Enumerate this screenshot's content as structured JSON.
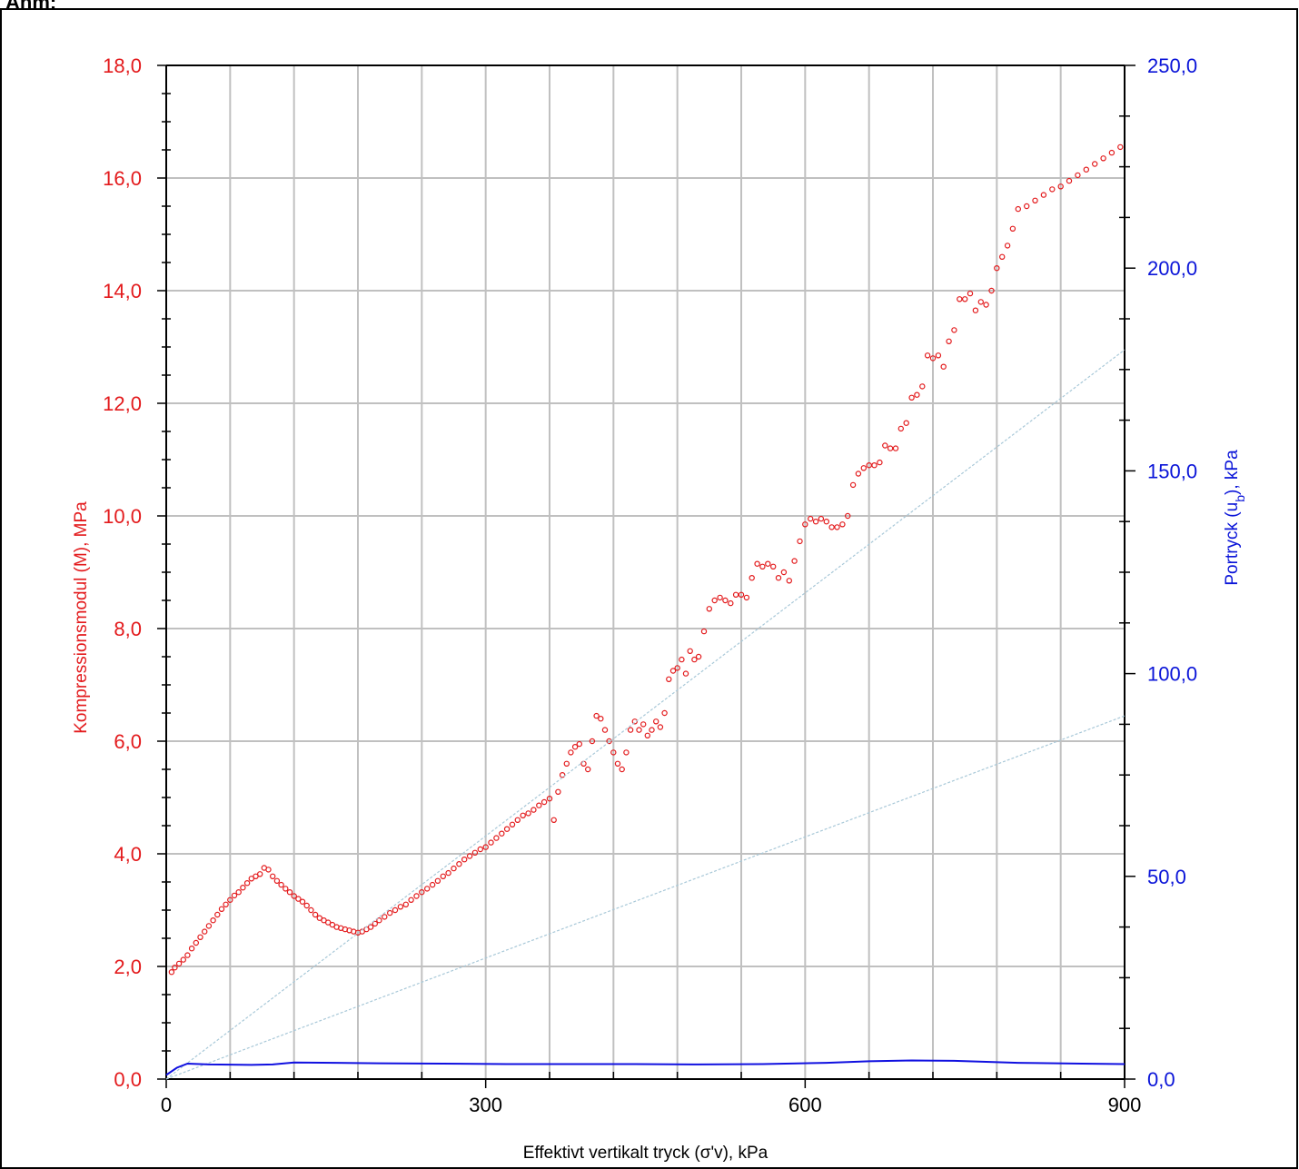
{
  "header": {
    "corner_label": "Anm:"
  },
  "colors": {
    "left_axis": "#e31a1c",
    "right_axis": "#0a14d8",
    "grid": "#c0c0c0",
    "ref_line": "#a8c8d8",
    "pore_line": "#1010e0"
  },
  "chart_data": {
    "type": "scatter",
    "xlabel": "Effektivt vertikalt tryck (σ'v), kPa",
    "ylabel_left": "Kompressionsmodul (M), MPa",
    "ylabel_right": "Portryck (uₕ), kPa",
    "ylabel_right_base": "Portryck (u",
    "ylabel_right_sub": "b",
    "ylabel_right_tail": "), kPa",
    "xlim": [
      0,
      900
    ],
    "ylim_left": [
      0,
      18
    ],
    "ylim_right": [
      0,
      250
    ],
    "x_ticks": [
      "0",
      "300",
      "600",
      "900"
    ],
    "y_left_ticks": [
      "0,0",
      "2,0",
      "4,0",
      "6,0",
      "8,0",
      "10,0",
      "12,0",
      "14,0",
      "16,0",
      "18,0"
    ],
    "y_right_ticks": [
      "0,0",
      "50,0",
      "100,0",
      "150,0",
      "200,0",
      "250,0"
    ],
    "grid": true,
    "series": [
      {
        "kind": "scatter-circles",
        "axis": "left",
        "points": [
          [
            5,
            1.9
          ],
          [
            8,
            1.98
          ],
          [
            12,
            2.05
          ],
          [
            16,
            2.12
          ],
          [
            20,
            2.2
          ],
          [
            24,
            2.32
          ],
          [
            28,
            2.42
          ],
          [
            32,
            2.52
          ],
          [
            36,
            2.62
          ],
          [
            40,
            2.72
          ],
          [
            44,
            2.82
          ],
          [
            48,
            2.92
          ],
          [
            52,
            3.02
          ],
          [
            56,
            3.1
          ],
          [
            60,
            3.18
          ],
          [
            64,
            3.26
          ],
          [
            68,
            3.32
          ],
          [
            72,
            3.4
          ],
          [
            76,
            3.48
          ],
          [
            80,
            3.56
          ],
          [
            84,
            3.6
          ],
          [
            88,
            3.64
          ],
          [
            92,
            3.75
          ],
          [
            96,
            3.72
          ],
          [
            100,
            3.6
          ],
          [
            104,
            3.52
          ],
          [
            108,
            3.45
          ],
          [
            112,
            3.38
          ],
          [
            116,
            3.32
          ],
          [
            120,
            3.25
          ],
          [
            124,
            3.2
          ],
          [
            128,
            3.15
          ],
          [
            132,
            3.08
          ],
          [
            136,
            3.0
          ],
          [
            140,
            2.92
          ],
          [
            144,
            2.86
          ],
          [
            148,
            2.82
          ],
          [
            152,
            2.78
          ],
          [
            156,
            2.74
          ],
          [
            160,
            2.7
          ],
          [
            164,
            2.68
          ],
          [
            168,
            2.66
          ],
          [
            172,
            2.64
          ],
          [
            176,
            2.62
          ],
          [
            180,
            2.6
          ],
          [
            184,
            2.62
          ],
          [
            188,
            2.66
          ],
          [
            192,
            2.7
          ],
          [
            196,
            2.76
          ],
          [
            200,
            2.82
          ],
          [
            205,
            2.88
          ],
          [
            210,
            2.95
          ],
          [
            215,
            3.0
          ],
          [
            220,
            3.06
          ],
          [
            225,
            3.1
          ],
          [
            230,
            3.18
          ],
          [
            235,
            3.25
          ],
          [
            240,
            3.32
          ],
          [
            245,
            3.38
          ],
          [
            250,
            3.45
          ],
          [
            255,
            3.52
          ],
          [
            260,
            3.6
          ],
          [
            265,
            3.66
          ],
          [
            270,
            3.74
          ],
          [
            275,
            3.82
          ],
          [
            280,
            3.9
          ],
          [
            285,
            3.96
          ],
          [
            290,
            4.02
          ],
          [
            295,
            4.08
          ],
          [
            300,
            4.12
          ],
          [
            305,
            4.2
          ],
          [
            310,
            4.28
          ],
          [
            315,
            4.36
          ],
          [
            320,
            4.44
          ],
          [
            325,
            4.52
          ],
          [
            330,
            4.6
          ],
          [
            335,
            4.68
          ],
          [
            340,
            4.72
          ],
          [
            345,
            4.78
          ],
          [
            350,
            4.86
          ],
          [
            355,
            4.92
          ],
          [
            360,
            4.98
          ],
          [
            364,
            4.6
          ],
          [
            368,
            5.1
          ],
          [
            372,
            5.4
          ],
          [
            376,
            5.6
          ],
          [
            380,
            5.8
          ],
          [
            384,
            5.9
          ],
          [
            388,
            5.95
          ],
          [
            392,
            5.6
          ],
          [
            396,
            5.5
          ],
          [
            400,
            6.0
          ],
          [
            404,
            6.45
          ],
          [
            408,
            6.4
          ],
          [
            412,
            6.2
          ],
          [
            416,
            6.0
          ],
          [
            420,
            5.8
          ],
          [
            424,
            5.6
          ],
          [
            428,
            5.5
          ],
          [
            432,
            5.8
          ],
          [
            436,
            6.2
          ],
          [
            440,
            6.35
          ],
          [
            444,
            6.2
          ],
          [
            448,
            6.3
          ],
          [
            452,
            6.1
          ],
          [
            456,
            6.2
          ],
          [
            460,
            6.35
          ],
          [
            464,
            6.25
          ],
          [
            468,
            6.5
          ],
          [
            472,
            7.1
          ],
          [
            476,
            7.25
          ],
          [
            480,
            7.3
          ],
          [
            484,
            7.45
          ],
          [
            488,
            7.2
          ],
          [
            492,
            7.6
          ],
          [
            496,
            7.45
          ],
          [
            500,
            7.5
          ],
          [
            505,
            7.95
          ],
          [
            510,
            8.35
          ],
          [
            515,
            8.5
          ],
          [
            520,
            8.55
          ],
          [
            525,
            8.5
          ],
          [
            530,
            8.45
          ],
          [
            535,
            8.6
          ],
          [
            540,
            8.6
          ],
          [
            545,
            8.55
          ],
          [
            550,
            8.9
          ],
          [
            555,
            9.15
          ],
          [
            560,
            9.1
          ],
          [
            565,
            9.15
          ],
          [
            570,
            9.1
          ],
          [
            575,
            8.9
          ],
          [
            580,
            9.0
          ],
          [
            585,
            8.85
          ],
          [
            590,
            9.2
          ],
          [
            595,
            9.55
          ],
          [
            600,
            9.85
          ],
          [
            605,
            9.95
          ],
          [
            610,
            9.9
          ],
          [
            615,
            9.95
          ],
          [
            620,
            9.9
          ],
          [
            625,
            9.8
          ],
          [
            630,
            9.8
          ],
          [
            635,
            9.85
          ],
          [
            640,
            10.0
          ],
          [
            645,
            10.55
          ],
          [
            650,
            10.75
          ],
          [
            655,
            10.85
          ],
          [
            660,
            10.9
          ],
          [
            665,
            10.9
          ],
          [
            670,
            10.95
          ],
          [
            675,
            11.25
          ],
          [
            680,
            11.2
          ],
          [
            685,
            11.2
          ],
          [
            690,
            11.55
          ],
          [
            695,
            11.65
          ],
          [
            700,
            12.1
          ],
          [
            705,
            12.15
          ],
          [
            710,
            12.3
          ],
          [
            715,
            12.85
          ],
          [
            720,
            12.8
          ],
          [
            725,
            12.85
          ],
          [
            730,
            12.65
          ],
          [
            735,
            13.1
          ],
          [
            740,
            13.3
          ],
          [
            745,
            13.85
          ],
          [
            750,
            13.85
          ],
          [
            755,
            13.95
          ],
          [
            760,
            13.65
          ],
          [
            765,
            13.8
          ],
          [
            770,
            13.75
          ],
          [
            775,
            14.0
          ],
          [
            780,
            14.4
          ],
          [
            785,
            14.6
          ],
          [
            790,
            14.8
          ],
          [
            795,
            15.1
          ],
          [
            800,
            15.45
          ],
          [
            808,
            15.5
          ],
          [
            816,
            15.6
          ],
          [
            824,
            15.7
          ],
          [
            832,
            15.8
          ],
          [
            840,
            15.85
          ],
          [
            848,
            15.95
          ],
          [
            856,
            16.05
          ],
          [
            864,
            16.15
          ],
          [
            872,
            16.25
          ],
          [
            880,
            16.35
          ],
          [
            888,
            16.45
          ],
          [
            896,
            16.55
          ]
        ]
      },
      {
        "kind": "reference-line",
        "axis": "left",
        "points": [
          [
            0,
            0
          ],
          [
            900,
            12.95
          ]
        ]
      },
      {
        "kind": "reference-line",
        "axis": "left",
        "points": [
          [
            0,
            0
          ],
          [
            900,
            6.45
          ]
        ]
      },
      {
        "kind": "pore-pressure-line",
        "axis": "right",
        "points": [
          [
            0,
            1.0
          ],
          [
            10,
            2.8
          ],
          [
            20,
            3.8
          ],
          [
            40,
            3.6
          ],
          [
            80,
            3.5
          ],
          [
            100,
            3.6
          ],
          [
            120,
            4.1
          ],
          [
            160,
            4.0
          ],
          [
            200,
            3.9
          ],
          [
            260,
            3.8
          ],
          [
            320,
            3.7
          ],
          [
            380,
            3.7
          ],
          [
            440,
            3.7
          ],
          [
            500,
            3.6
          ],
          [
            560,
            3.7
          ],
          [
            620,
            4.0
          ],
          [
            660,
            4.4
          ],
          [
            700,
            4.6
          ],
          [
            740,
            4.5
          ],
          [
            800,
            4.0
          ],
          [
            860,
            3.8
          ],
          [
            900,
            3.7
          ]
        ]
      }
    ]
  }
}
